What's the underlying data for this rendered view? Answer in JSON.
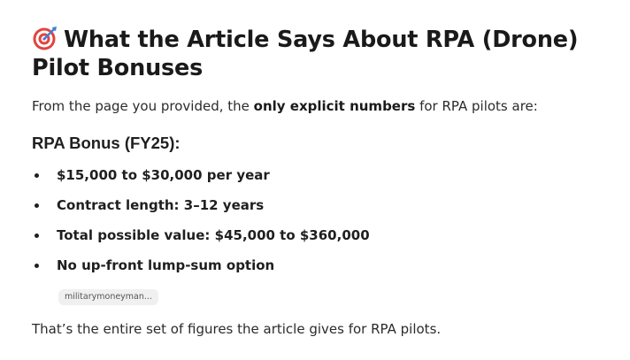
{
  "article": {
    "title": "What the Article Says About RPA (Drone) Pilot Bonuses",
    "title_icon": "direct-hit-target-icon",
    "intro": {
      "before": "From the page you provided, the ",
      "emphasis": "only explicit numbers",
      "after": " for RPA pilots are:"
    },
    "section_heading": "RPA Bonus (FY25):",
    "bullets": [
      "$15,000 to $30,000 per year",
      "Contract length: 3–12 years",
      "Total possible value: $45,000 to $360,000",
      "No up-front lump-sum option"
    ],
    "citation_label": "militarymoneyman...",
    "closing": "That’s the entire set of figures the article gives for RPA pilots."
  },
  "colors": {
    "text": "#1f1f1f",
    "target_red": "#e0443e",
    "target_blue": "#3f7fd8"
  }
}
